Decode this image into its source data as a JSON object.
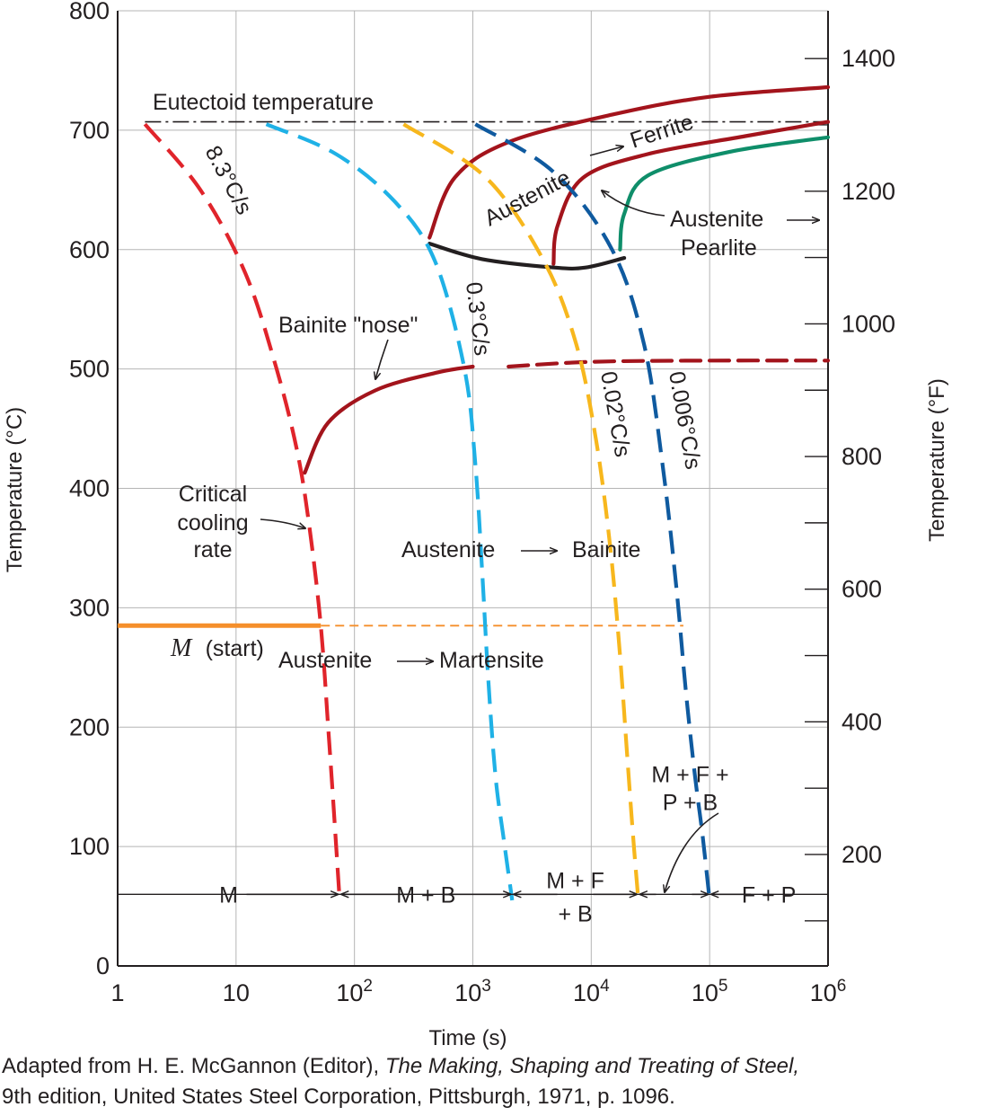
{
  "chart_data": {
    "type": "line",
    "title": "",
    "xlabel": "Time (s)",
    "ylabel": "Temperature (°C)",
    "ylabel_right": "Temperature (°F)",
    "x_scale": "log",
    "xlim": [
      1,
      1000000
    ],
    "ylim": [
      0,
      800
    ],
    "ylim_right": [
      32,
      1472
    ],
    "x_ticks": [
      {
        "value": 1,
        "base": "1",
        "exp": ""
      },
      {
        "value": 10,
        "base": "10",
        "exp": ""
      },
      {
        "value": 100,
        "base": "10",
        "exp": "2"
      },
      {
        "value": 1000,
        "base": "10",
        "exp": "3"
      },
      {
        "value": 10000,
        "base": "10",
        "exp": "4"
      },
      {
        "value": 100000,
        "base": "10",
        "exp": "5"
      },
      {
        "value": 1000000,
        "base": "10",
        "exp": "6"
      }
    ],
    "y_ticks": [
      "0",
      "100",
      "200",
      "300",
      "400",
      "500",
      "600",
      "700",
      "800"
    ],
    "y_ticks_right": [
      "200",
      "400",
      "600",
      "800",
      "1000",
      "1200",
      "1400"
    ],
    "y_ticks_right_values": [
      200,
      400,
      600,
      800,
      1000,
      1200,
      1400
    ],
    "grid": true,
    "colors": {
      "red": "#e0242b",
      "lightblue": "#1fb1e6",
      "yellow": "#f7b71d",
      "darkblue": "#0f5a9f",
      "maroon": "#a3141c",
      "black": "#231f20",
      "green": "#0f8e6a",
      "orange": "#f58f2b",
      "grid": "#b5b5b5"
    },
    "eutectoid": {
      "y": 707,
      "label": "Eutectoid temperature"
    },
    "ms_line": {
      "y": 285,
      "solid_to_x": 52,
      "dashed_to_x": 60000
    },
    "cooling_curves": [
      {
        "name": "8.3°C/s",
        "rate": "8.3°C/s",
        "color": "red",
        "points": [
          [
            1.7,
            705
          ],
          [
            5,
            650
          ],
          [
            12,
            580
          ],
          [
            22,
            500
          ],
          [
            33,
            430
          ],
          [
            42,
            365
          ],
          [
            52,
            285
          ],
          [
            60,
            200
          ],
          [
            68,
            120
          ],
          [
            75,
            55
          ]
        ]
      },
      {
        "name": "0.3°C/s",
        "rate": "0.3°C/s",
        "color": "lightblue",
        "points": [
          [
            18,
            705
          ],
          [
            70,
            680
          ],
          [
            220,
            640
          ],
          [
            480,
            590
          ],
          [
            850,
            500
          ],
          [
            1050,
            420
          ],
          [
            1200,
            330
          ],
          [
            1350,
            240
          ],
          [
            1550,
            160
          ],
          [
            1800,
            110
          ],
          [
            2150,
            55
          ]
        ]
      },
      {
        "name": "0.02°C/s",
        "rate": "0.02°C/s",
        "color": "yellow",
        "points": [
          [
            260,
            705
          ],
          [
            1300,
            660
          ],
          [
            4000,
            590
          ],
          [
            7500,
            520
          ],
          [
            11000,
            440
          ],
          [
            14500,
            350
          ],
          [
            17500,
            260
          ],
          [
            20000,
            180
          ],
          [
            22500,
            110
          ],
          [
            25000,
            55
          ]
        ]
      },
      {
        "name": "0.006°C/s",
        "rate": "0.006°C/s",
        "color": "darkblue",
        "points": [
          [
            1050,
            705
          ],
          [
            4800,
            665
          ],
          [
            15000,
            600
          ],
          [
            28000,
            520
          ],
          [
            40000,
            420
          ],
          [
            52000,
            320
          ],
          [
            63000,
            230
          ],
          [
            75000,
            160
          ],
          [
            87000,
            110
          ],
          [
            100000,
            55
          ]
        ]
      }
    ],
    "transformation_curves": [
      {
        "name": "Austenite → Ferrite start",
        "color": "maroon",
        "style": "solid",
        "points": [
          [
            430,
            610
          ],
          [
            700,
            660
          ],
          [
            2000,
            690
          ],
          [
            15000,
            713
          ],
          [
            100000,
            728
          ],
          [
            1000000,
            736
          ]
        ]
      },
      {
        "name": "Austenite → Pearlite start",
        "color": "maroon",
        "style": "solid",
        "points": [
          [
            4800,
            588
          ],
          [
            5200,
            620
          ],
          [
            8500,
            660
          ],
          [
            30000,
            680
          ],
          [
            200000,
            695
          ],
          [
            1000000,
            707
          ]
        ]
      },
      {
        "name": "Austenite → Pearlite finish",
        "color": "green",
        "style": "solid",
        "points": [
          [
            17500,
            600
          ],
          [
            19000,
            630
          ],
          [
            30000,
            662
          ],
          [
            150000,
            682
          ],
          [
            1000000,
            694
          ]
        ]
      },
      {
        "name": "Ferrite/Pearlite nose",
        "color": "black",
        "style": "solid",
        "points": [
          [
            430,
            605
          ],
          [
            1200,
            592
          ],
          [
            4800,
            585
          ],
          [
            9000,
            585
          ],
          [
            19000,
            593
          ]
        ]
      },
      {
        "name": "Bainite start",
        "color": "maroon",
        "style": "solid",
        "points": [
          [
            38,
            413
          ],
          [
            60,
            455
          ],
          [
            150,
            482
          ],
          [
            500,
            497
          ],
          [
            1000,
            502
          ]
        ]
      },
      {
        "name": "Bainite start (extended)",
        "color": "maroon",
        "style": "dashed",
        "points": [
          [
            2000,
            502
          ],
          [
            10000,
            506
          ],
          [
            100000,
            507
          ],
          [
            1000000,
            507
          ]
        ]
      }
    ],
    "regions": [
      {
        "label": "M",
        "x_from": 1,
        "x_to": 75
      },
      {
        "label": "M + B",
        "x_from": 75,
        "x_to": 2150
      },
      {
        "label_line1": "M + F",
        "label_line2": "+ B",
        "x_from": 2150,
        "x_to": 25000
      },
      {
        "label_line1": "M + F +",
        "label_line2": "P + B",
        "x_from": 25000,
        "x_to": 100000
      },
      {
        "label": "F + P",
        "x_from": 100000,
        "x_to": 1000000
      }
    ],
    "region_line_y": 60,
    "annotations": {
      "austenite_ferrite": "Austenite",
      "ferrite": "Ferrite",
      "austenite_pearlite_1": "Austenite",
      "austenite_pearlite_2": "Pearlite",
      "bainite_nose": "Bainite \"nose\"",
      "critical_1": "Critical",
      "critical_2": "cooling",
      "critical_3": "rate",
      "aust_bainite_1": "Austenite",
      "aust_bainite_2": "Bainite",
      "m_start_m": "M",
      "m_start_rest": "(start)",
      "aust_mart_1": "Austenite",
      "aust_mart_2": "Martensite"
    }
  },
  "caption": {
    "line1_prefix": "Adapted from H. E. McGannon (Editor), ",
    "line1_italic": "The Making, Shaping and Treating of Steel,",
    "line2": "9th edition, United States Steel Corporation, Pittsburgh, 1971, p. 1096."
  }
}
